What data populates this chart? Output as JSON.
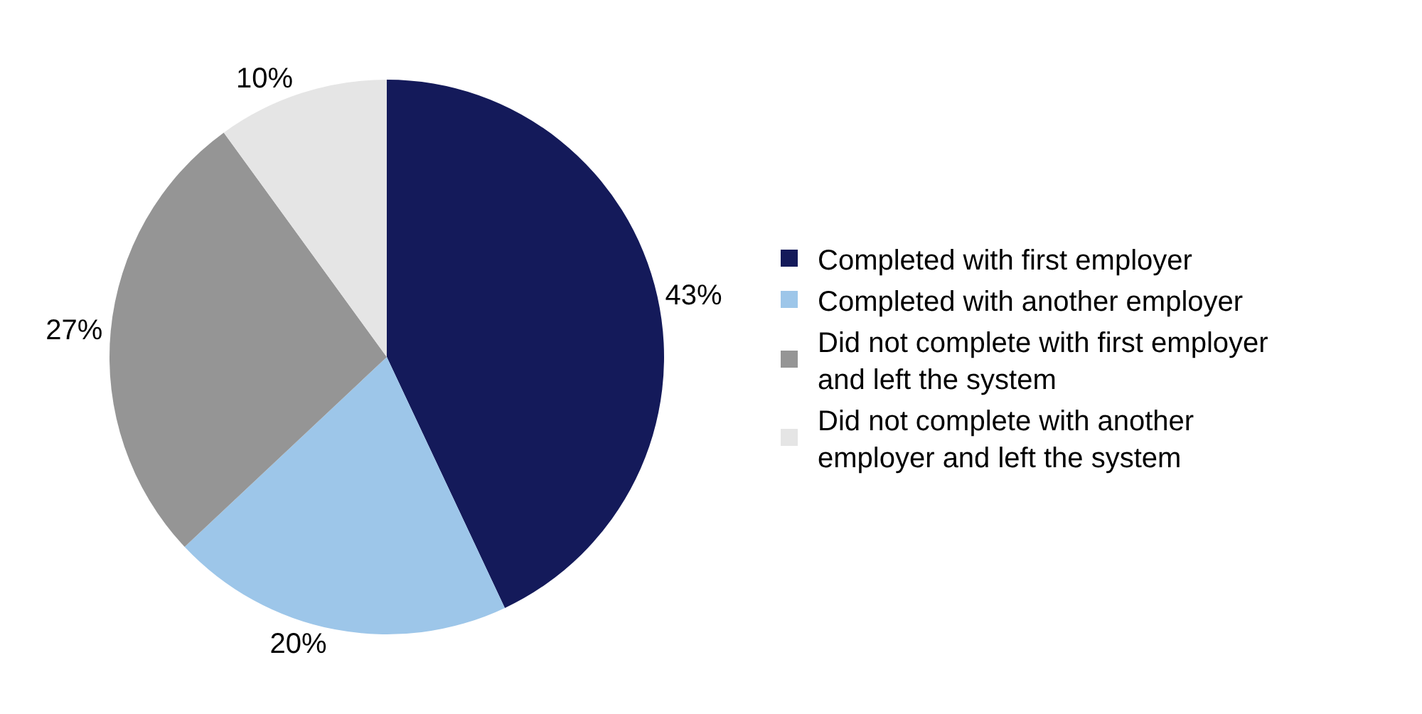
{
  "chart_data": {
    "type": "pie",
    "categories": [
      "Completed with first employer",
      "Completed with another employer",
      "Did not complete with first employer and left the system",
      "Did not complete with another employer and left the system"
    ],
    "values": [
      43,
      20,
      27,
      10
    ],
    "value_labels": [
      "43%",
      "20%",
      "27%",
      "10%"
    ],
    "colors": [
      "#141a5a",
      "#9dc6e9",
      "#959595",
      "#e5e5e5"
    ],
    "legend": "right"
  }
}
